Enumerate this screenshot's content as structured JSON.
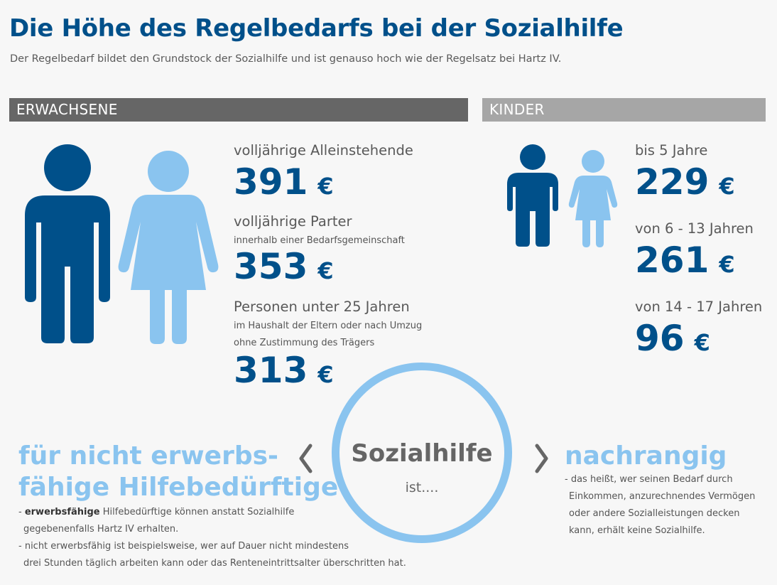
{
  "title": "Die Höhe des Regelbedarfs bei der Sozialhilfe",
  "subtitle": "Der Regelbedarf bildet den Grundstock der Sozialhilfe und ist  genauso hoch wie der Regelsatz bei Hartz IV.",
  "adults": {
    "header": "ERWACHSENE",
    "items": [
      {
        "label": "volljährige Alleinstehende",
        "amount": "391",
        "currency": "€"
      },
      {
        "label": "volljährige Parter",
        "note": "innerhalb einer Bedarfsgemeinschaft",
        "amount": "353",
        "currency": "€"
      },
      {
        "label": "Personen unter 25 Jahren",
        "note1": "im Haushalt der Eltern oder nach Umzug",
        "note2": "ohne Zustimmung des Trägers",
        "amount": "313",
        "currency": "€"
      }
    ]
  },
  "kids": {
    "header": "KINDER",
    "items": [
      {
        "label": "bis 5 Jahre",
        "amount": "229",
        "currency": "€"
      },
      {
        "label": "von 6 - 13 Jahren",
        "amount": "261",
        "currency": "€"
      },
      {
        "label": "von 14 - 17 Jahren",
        "amount": "96",
        "currency": "€"
      }
    ]
  },
  "center": {
    "word": "Sozialhilfe",
    "sub": "ist...."
  },
  "left": {
    "heading1": "für nicht erwerbs-",
    "heading2": "fähige Hilfebedürftige",
    "note1_bold": "erwerbsfähige",
    "note1_rest": " Hilfebedürftige können anstatt Sozialhilfe",
    "note1_cont": "gegebenenfalls Hartz IV erhalten.",
    "note2": "- nicht erwerbsfähig ist beispielsweise, wer auf Dauer nicht mindestens",
    "note2_cont": "drei Stunden täglich arbeiten kann oder das Renteneintrittsalter überschritten hat."
  },
  "right": {
    "heading": "nachrangig",
    "lines": [
      "- das heißt, wer seinen Bedarf durch",
      "Einkommen, anzurechnendes Vermögen",
      "oder andere Sozialleistungen decken",
      "kann, erhält keine Sozialhilfe."
    ]
  },
  "colors": {
    "dark_blue": "#00508a",
    "light_blue": "#8ac4ef",
    "gray_bar": "#666666",
    "light_gray_bar": "#a6a6a6"
  },
  "icons": {
    "man": "man-icon",
    "woman": "woman-icon",
    "boy": "boy-icon",
    "girl": "girl-icon"
  }
}
